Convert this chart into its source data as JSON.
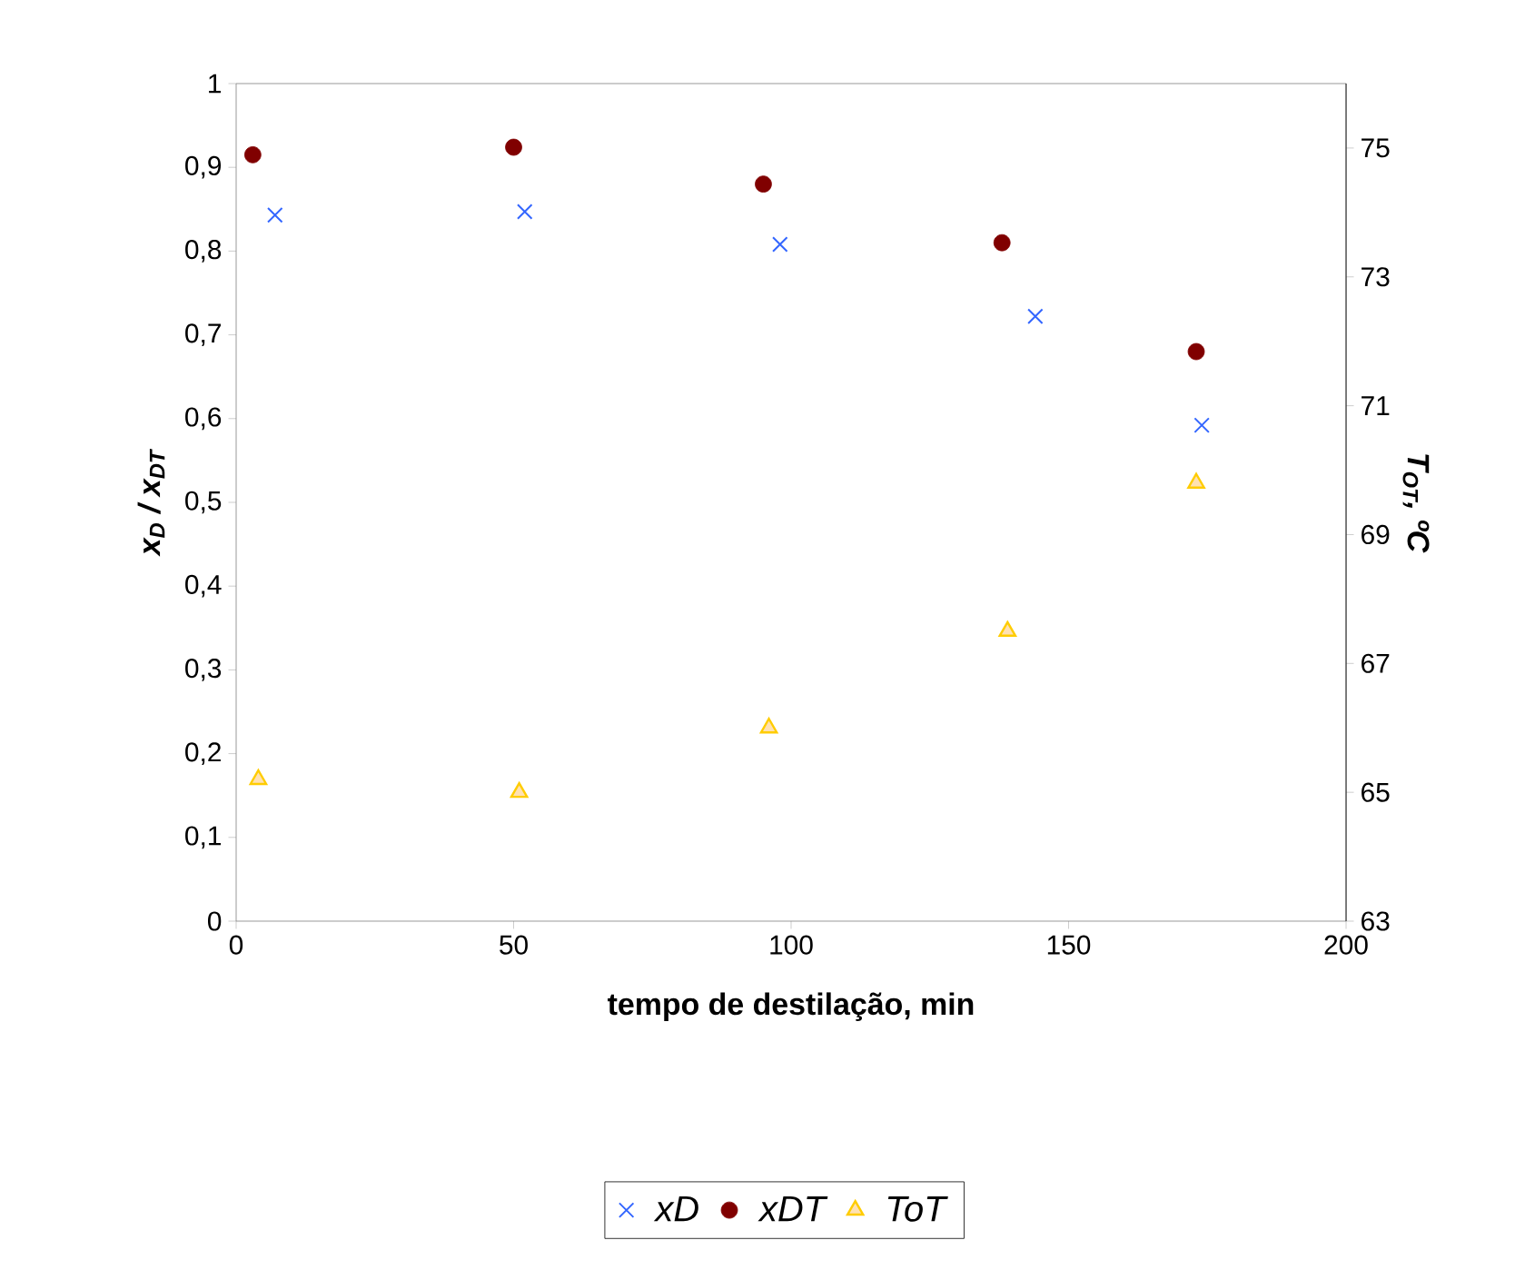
{
  "chart_data": {
    "type": "scatter",
    "xlabel": "tempo de destilação, min",
    "ylabel": "x$_{D}$ / x$_{DT}$",
    "y2label": "T$_{OT}$, ºC",
    "xlim": [
      0,
      200
    ],
    "xticks": [
      0,
      50,
      100,
      150,
      200
    ],
    "ylim": [
      0,
      1
    ],
    "yticks": [
      0,
      {
        "value": 0.1,
        "label": "0,1"
      },
      {
        "value": 0.2,
        "label": "0,2"
      },
      {
        "value": 0.3,
        "label": "0,3"
      },
      {
        "value": 0.4,
        "label": "0,4"
      },
      {
        "value": 0.5,
        "label": "0,5"
      },
      {
        "value": 0.6,
        "label": "0,6"
      },
      {
        "value": 0.7,
        "label": "0,7"
      },
      {
        "value": 0.8,
        "label": "0,8"
      },
      {
        "value": 0.9,
        "label": "0,9"
      },
      1
    ],
    "y2lim": [
      63,
      76
    ],
    "y2ticks": [
      63,
      65,
      67,
      69,
      71,
      73,
      75
    ],
    "grid": false,
    "legend": "bottom",
    "series": [
      {
        "name": "xD",
        "color": "#3366ff",
        "marker": "cross",
        "x": [
          7,
          52,
          98,
          144,
          174
        ],
        "values": [
          0.843,
          0.847,
          0.808,
          0.722,
          0.592
        ]
      },
      {
        "name": "xDT",
        "color": "#800000",
        "marker": "circle",
        "x": [
          3,
          50,
          95,
          138,
          173
        ],
        "values": [
          0.915,
          0.924,
          0.88,
          0.81,
          0.68
        ]
      },
      {
        "name": "ToT",
        "color": "#ffcc00",
        "marker": "triangle",
        "axis": "y2",
        "x": [
          4,
          51,
          96,
          139,
          173
        ],
        "values": [
          65.2,
          65.0,
          66.0,
          67.5,
          69.8
        ]
      }
    ]
  }
}
